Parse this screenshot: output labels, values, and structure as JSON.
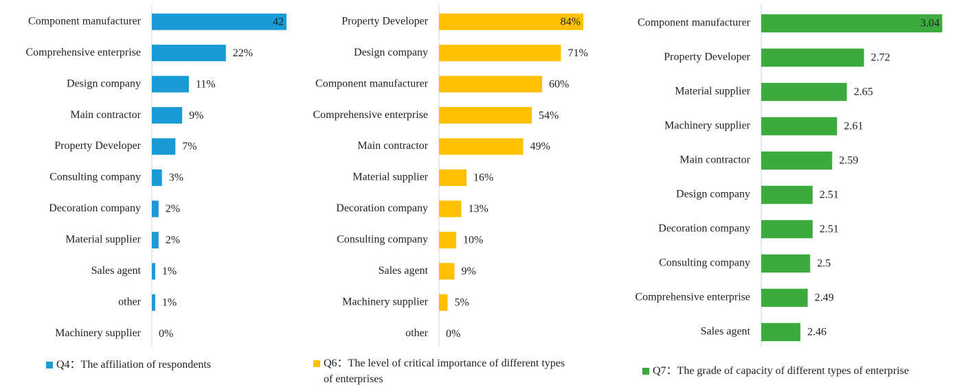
{
  "chart_data": [
    {
      "type": "barh",
      "categories": [
        "Component manufacturer",
        "Comprehensive enterprise",
        "Design company",
        "Main contractor",
        "Property Developer",
        "Consulting company",
        "Decoration company",
        "Material supplier",
        "Sales agent",
        "other",
        "Machinery supplier"
      ],
      "series": [
        {
          "name": "Q4：The affiliation of respondents",
          "color": "#1a9ad6",
          "values": [
            42,
            22,
            11,
            9,
            7,
            3,
            2,
            2,
            1,
            1,
            0
          ],
          "value_labels": [
            "42",
            "22%",
            "11%",
            "9%",
            "7%",
            "3%",
            "2%",
            "2%",
            "1%",
            "1%",
            "0%"
          ]
        }
      ],
      "xlim": [
        0,
        40
      ]
    },
    {
      "type": "barh",
      "categories": [
        "Property Developer",
        "Design company",
        "Component manufacturer",
        "Comprehensive enterprise",
        "Main contractor",
        "Material supplier",
        "Decoration company",
        "Consulting company",
        "Sales agent",
        "Machinery supplier",
        "other"
      ],
      "series": [
        {
          "name": "Q6：The level of critical importance of different types of enterprises",
          "color": "#ffc000",
          "values": [
            84,
            71,
            60,
            54,
            49,
            16,
            13,
            10,
            9,
            5,
            0
          ],
          "value_labels": [
            "84%",
            "71%",
            "60%",
            "54%",
            "49%",
            "16%",
            "13%",
            "10%",
            "9%",
            "5%",
            "0%"
          ]
        }
      ],
      "xlim": [
        0,
        90
      ]
    },
    {
      "type": "barh",
      "categories": [
        "Component manufacturer",
        "Property Developer",
        "Material supplier",
        "Machinery supplier",
        "Main contractor",
        "Design company",
        "Decoration company",
        "Consulting company",
        "Comprehensive enterprise",
        "Sales agent"
      ],
      "series": [
        {
          "name": "Q7：The grade of capacity of different types of enterprise",
          "color": "#3daa3d",
          "values": [
            3.04,
            2.72,
            2.65,
            2.61,
            2.59,
            2.51,
            2.51,
            2.5,
            2.49,
            2.46
          ]
        }
      ],
      "xlim": [
        2.3,
        3.05
      ]
    }
  ]
}
